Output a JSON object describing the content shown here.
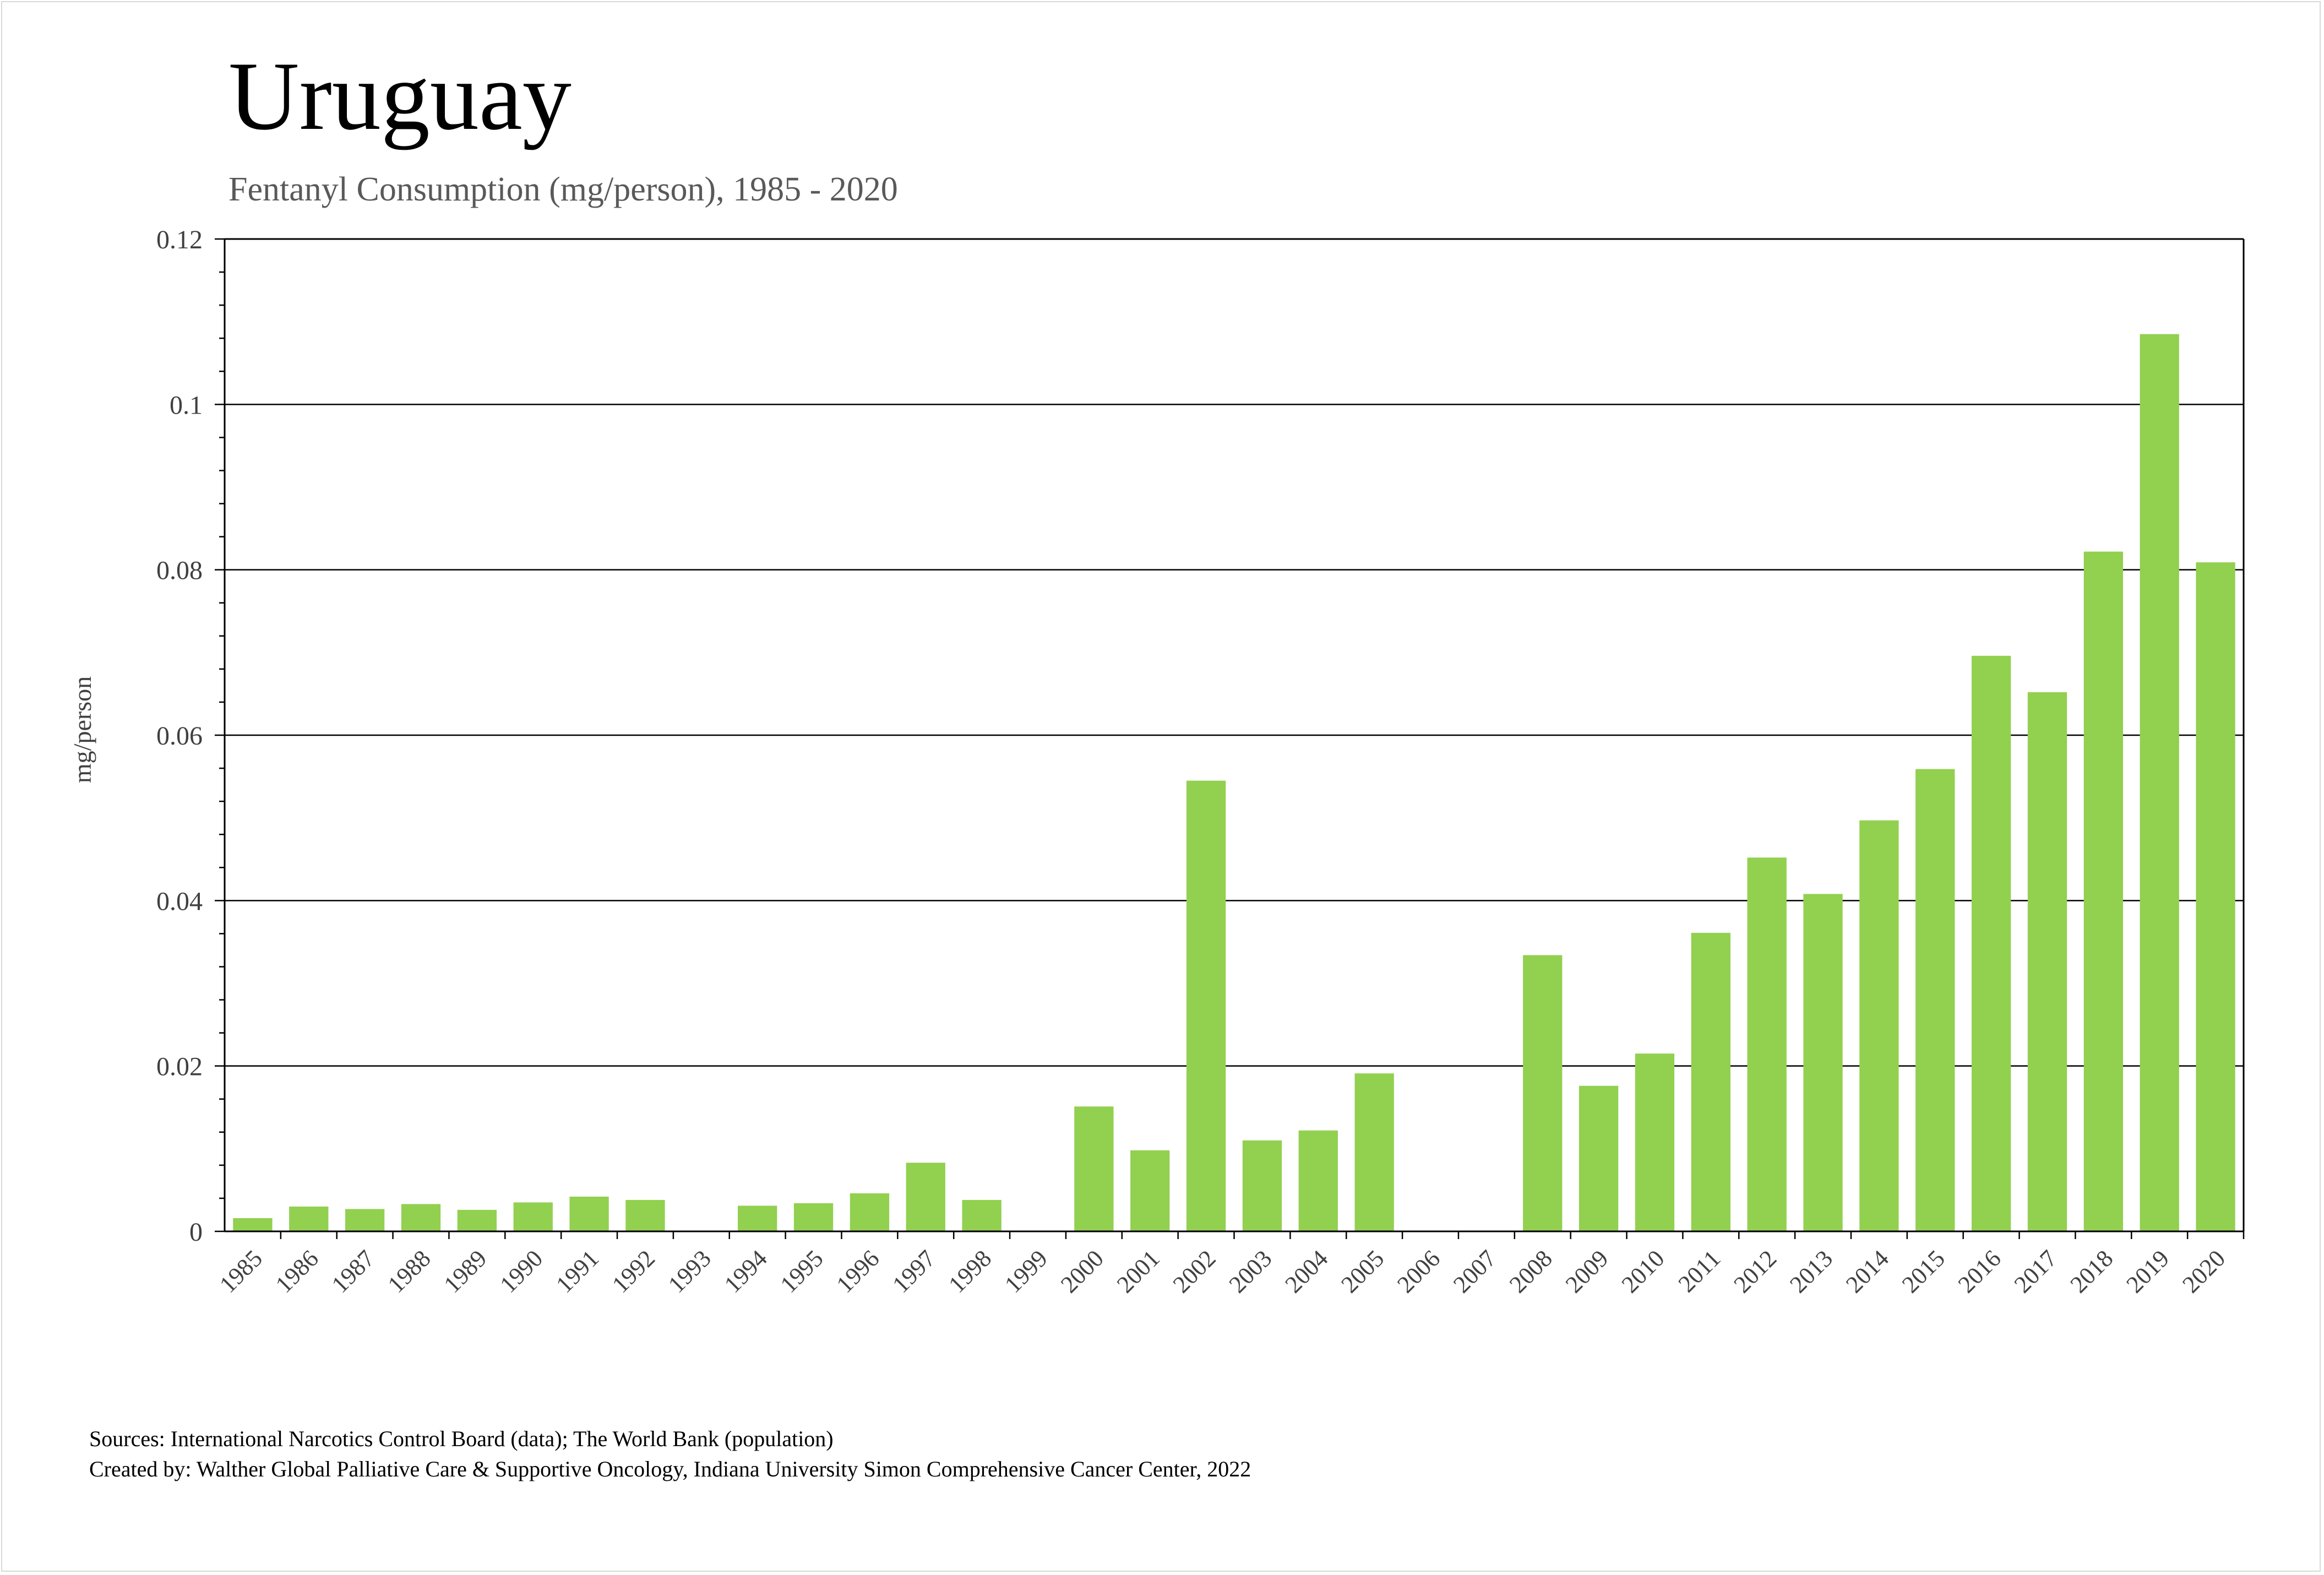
{
  "chart_data": {
    "type": "bar",
    "title": "Uruguay",
    "subtitle": "Fentanyl Consumption (mg/person), 1985 - 2020",
    "xlabel": "",
    "ylabel": "mg/person",
    "ylim": [
      0,
      0.12
    ],
    "yticks": [
      "0",
      "0.02",
      "0.04",
      "0.06",
      "0.08",
      "0.1",
      "0.12"
    ],
    "grid": true,
    "bar_color": "#92d050",
    "categories": [
      "1985",
      "1986",
      "1987",
      "1988",
      "1989",
      "1990",
      "1991",
      "1992",
      "1993",
      "1994",
      "1995",
      "1996",
      "1997",
      "1998",
      "1999",
      "2000",
      "2001",
      "2002",
      "2003",
      "2004",
      "2005",
      "2006",
      "2007",
      "2008",
      "2009",
      "2010",
      "2011",
      "2012",
      "2013",
      "2014",
      "2015",
      "2016",
      "2017",
      "2018",
      "2019",
      "2020"
    ],
    "values": [
      0.0016,
      0.003,
      0.0027,
      0.0033,
      0.0026,
      0.0035,
      0.0042,
      0.0038,
      0,
      0.0031,
      0.0034,
      0.0046,
      0.0083,
      0.0038,
      0,
      0.0151,
      0.0098,
      0.0545,
      0.011,
      0.0122,
      0.0191,
      0,
      0,
      0.0334,
      0.0176,
      0.0215,
      0.0361,
      0.0452,
      0.0408,
      0.0497,
      0.0559,
      0.0696,
      0.0652,
      0.0822,
      0.1085,
      0.0809
    ]
  },
  "footer": {
    "sources": "Sources: International Narcotics Control Board (data); The World Bank (population)",
    "created_by": "Created by: Walther Global Palliative Care & Supportive Oncology, Indiana University Simon Comprehensive Cancer Center, 2022"
  }
}
